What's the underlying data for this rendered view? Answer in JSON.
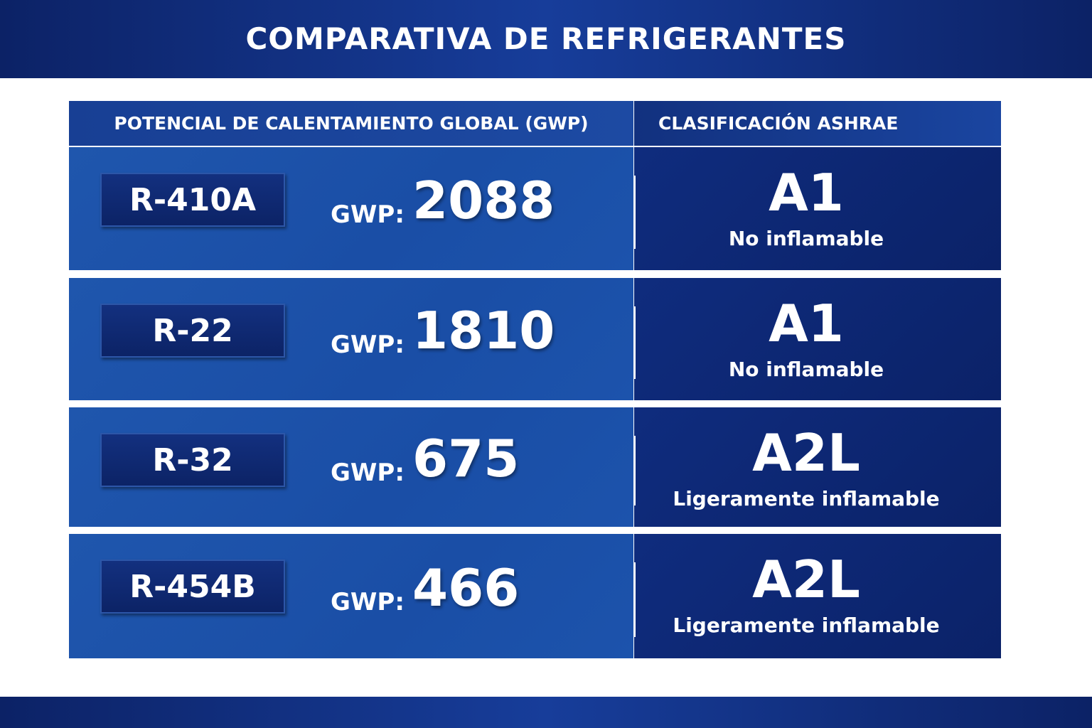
{
  "header": {
    "title": "COMPARATIVA DE REFRIGERANTES"
  },
  "table": {
    "columns": [
      "POTENCIAL DE CALENTAMIENTO GLOBAL (GWP)",
      "CLASIFICACIÓN ASHRAE"
    ],
    "rows": [
      {
        "refrigerant": "R-410A",
        "gwp_label": "GWP:",
        "gwp": 2088,
        "class": "A1",
        "flammability": "No inflamable"
      },
      {
        "refrigerant": "R-22",
        "gwp_label": "GWP:",
        "gwp": 1810,
        "class": "A1",
        "flammability": "No inflamable"
      },
      {
        "refrigerant": "R-32",
        "gwp_label": "GWP:",
        "gwp": 675,
        "class": "A2L",
        "flammability": "Ligeramente inflamable"
      },
      {
        "refrigerant": "R-454B",
        "gwp_label": "GWP:",
        "gwp": 466,
        "class": "A2L",
        "flammability": "Ligeramente inflamable"
      }
    ]
  }
}
